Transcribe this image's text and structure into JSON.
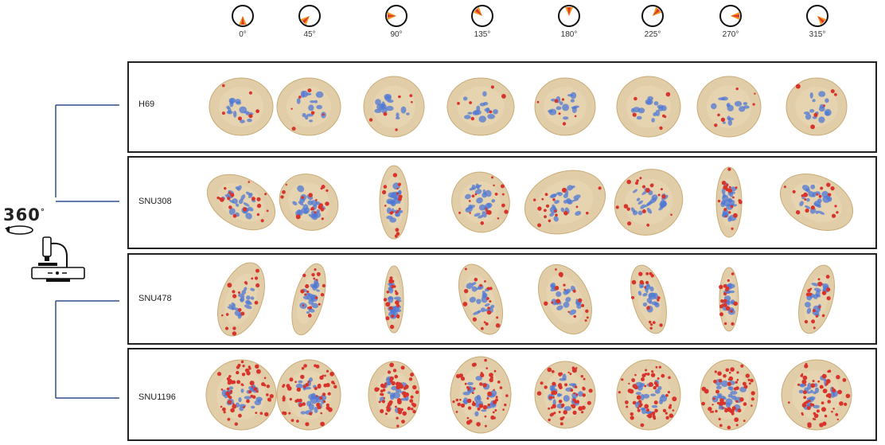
{
  "rotation": {
    "label": "360",
    "suffix": "°"
  },
  "angles": [
    "0°",
    "45°",
    "90°",
    "135°",
    "180°",
    "225°",
    "270°",
    "315°"
  ],
  "angle_degrees": [
    0,
    45,
    90,
    135,
    180,
    225,
    270,
    315
  ],
  "cell_lines": [
    {
      "name": "H69"
    },
    {
      "name": "SNU308"
    },
    {
      "name": "SNU478"
    },
    {
      "name": "SNU1196"
    }
  ],
  "colors": {
    "cell_body": "#dcc59a",
    "nucleus_marker": "#4f78d6",
    "red_marker": "#d8342b",
    "bracket": "#2f4f8a",
    "frame": "#222222"
  },
  "icons": [
    "rotate-arrow-icon",
    "microscope-icon",
    "angle-dial-icon"
  ]
}
